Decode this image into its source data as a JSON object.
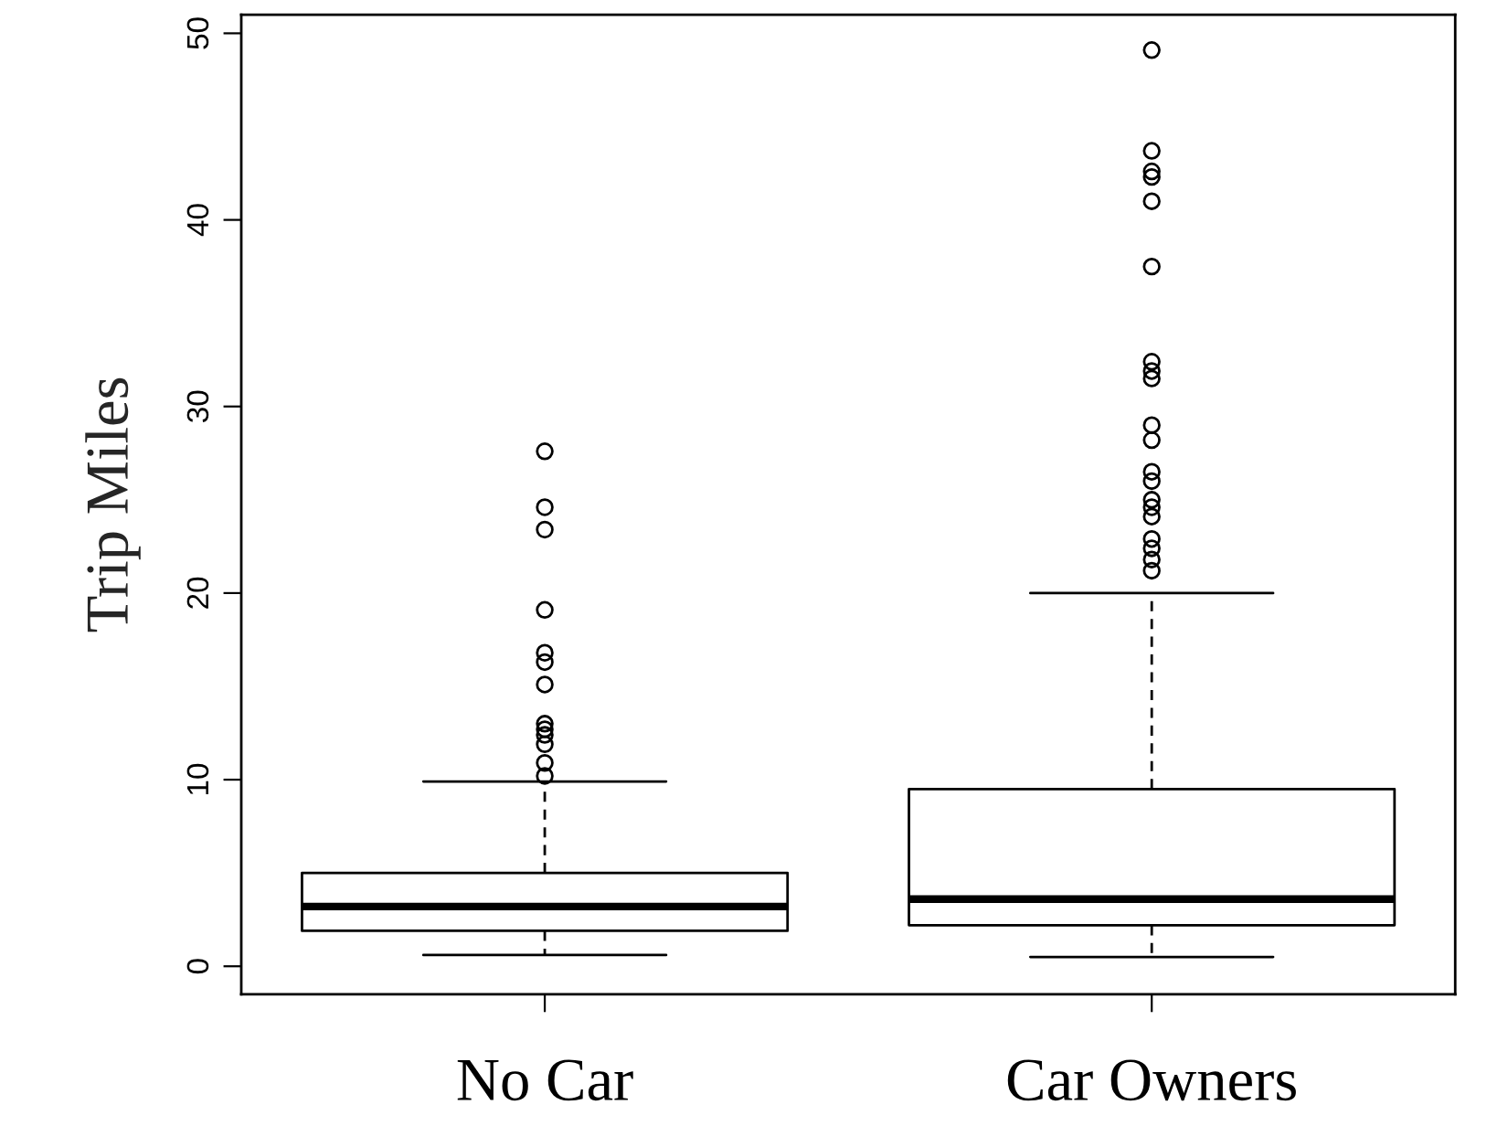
{
  "chart_data": {
    "type": "box",
    "ylabel": "Trip Miles",
    "categories": [
      "No Car",
      "Car Owners"
    ],
    "boxes": [
      {
        "low": 0.6,
        "q1": 1.9,
        "median": 3.2,
        "q3": 5.0,
        "high": 9.9,
        "outliers": [
          27.6,
          24.6,
          23.4,
          19.1,
          16.8,
          16.3,
          15.1,
          13.0,
          12.7,
          12.4,
          11.9,
          10.9,
          10.2
        ]
      },
      {
        "low": 0.5,
        "q1": 2.2,
        "median": 3.6,
        "q3": 9.5,
        "high": 20.0,
        "outliers": [
          49.1,
          43.7,
          42.6,
          42.3,
          41.0,
          37.5,
          32.4,
          31.9,
          31.5,
          29.0,
          28.2,
          26.5,
          26.0,
          25.0,
          24.6,
          24.1,
          22.9,
          22.4,
          21.8,
          21.2
        ]
      }
    ],
    "ylim": [
      -1.5,
      51
    ],
    "yticks": [
      0,
      10,
      20,
      30,
      40,
      50
    ],
    "grid": false
  }
}
